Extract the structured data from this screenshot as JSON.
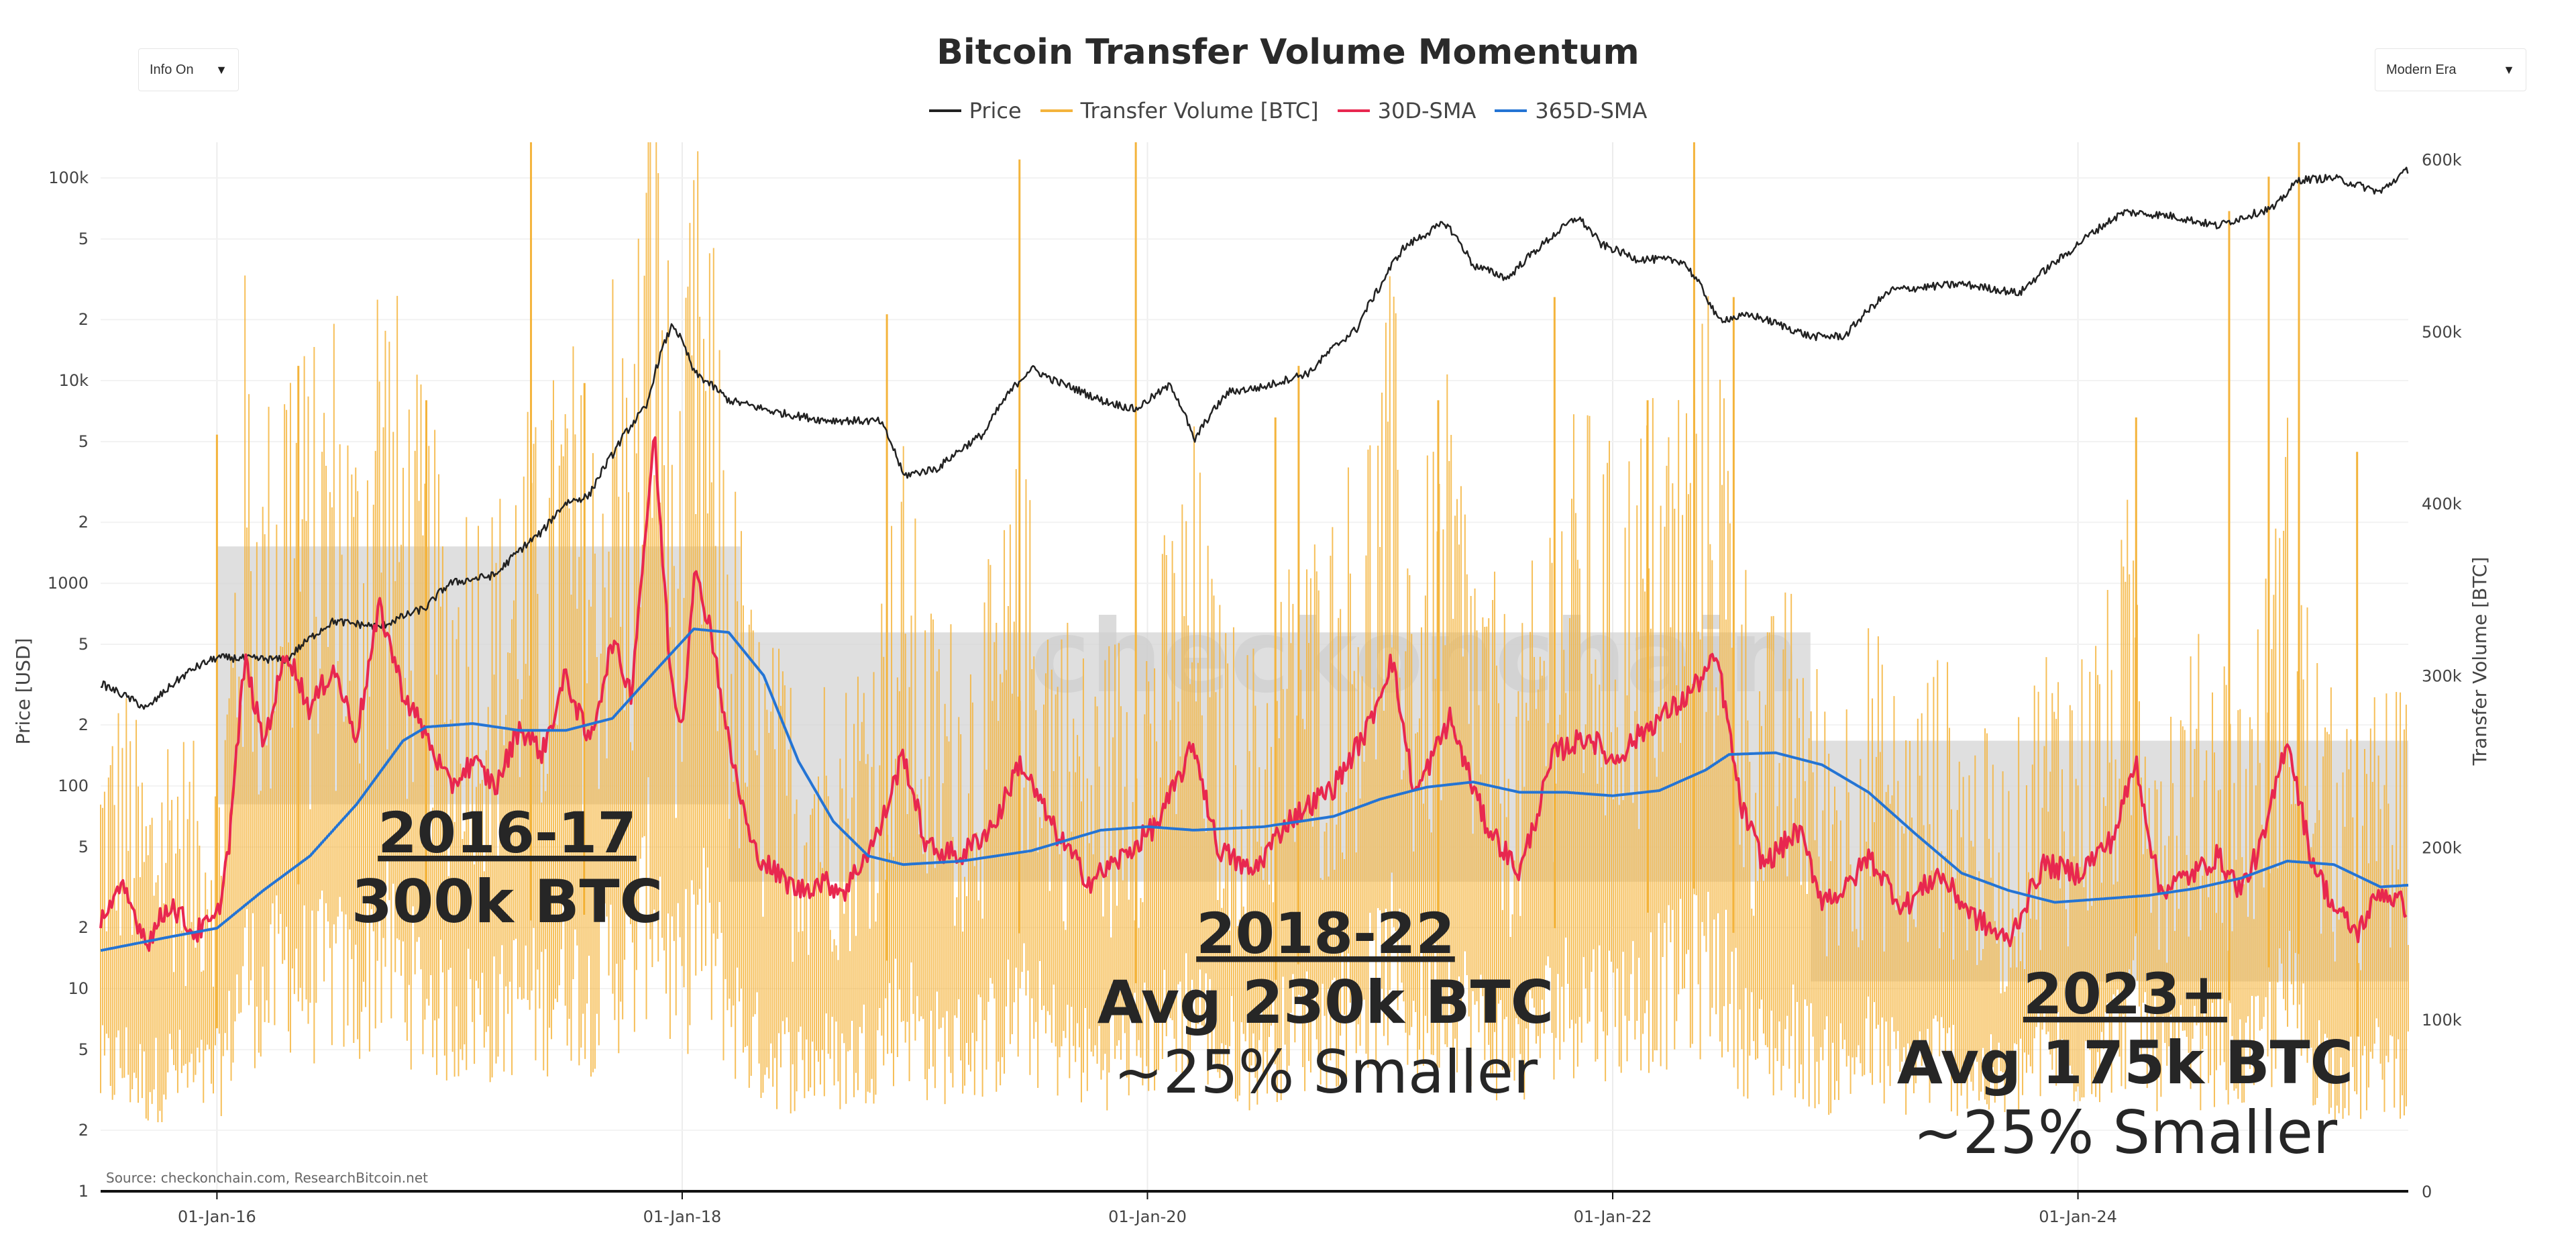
{
  "controls": {
    "info_label": "Info On",
    "era_label": "Modern Era",
    "dropdown_glyph": "▼"
  },
  "colors": {
    "price": "#222222",
    "volume": "#f4b43c",
    "sma30": "#e8274f",
    "sma365": "#2474d4",
    "watermark": "#cfcfcf"
  },
  "chart_data": {
    "type": "line",
    "title": "Bitcoin Transfer Volume Momentum",
    "legend": [
      "Price",
      "Transfer Volume [BTC]",
      "30D-SMA",
      "365D-SMA"
    ],
    "y_left_label": "Price [USD]",
    "y_right_label": "Transfer Volume [BTC]",
    "y_left_scale": "log",
    "y_left_range": [
      1,
      150000
    ],
    "y_right_range": [
      0,
      610000
    ],
    "x_range": [
      "2015-07-01",
      "2025-06-01"
    ],
    "x_ticks": [
      "01-Jan-16",
      "01-Jan-18",
      "01-Jan-20",
      "01-Jan-22",
      "01-Jan-24"
    ],
    "x_tick_dates": [
      2016.0,
      2018.0,
      2020.0,
      2022.0,
      2024.0
    ],
    "y_left_ticks": [
      {
        "v": 1,
        "t": "1"
      },
      {
        "v": 2,
        "t": "2"
      },
      {
        "v": 5,
        "t": "5"
      },
      {
        "v": 10,
        "t": "10"
      },
      {
        "v": 20,
        "t": "2"
      },
      {
        "v": 50,
        "t": "5"
      },
      {
        "v": 100,
        "t": "100"
      },
      {
        "v": 200,
        "t": "2"
      },
      {
        "v": 500,
        "t": "5"
      },
      {
        "v": 1000,
        "t": "1000"
      },
      {
        "v": 2000,
        "t": "2"
      },
      {
        "v": 5000,
        "t": "5"
      },
      {
        "v": 10000,
        "t": "10k"
      },
      {
        "v": 20000,
        "t": "2"
      },
      {
        "v": 50000,
        "t": "5"
      },
      {
        "v": 100000,
        "t": "100k"
      }
    ],
    "y_right_ticks": [
      {
        "v": 0,
        "t": "0"
      },
      {
        "v": 100000,
        "t": "100k"
      },
      {
        "v": 200000,
        "t": "200k"
      },
      {
        "v": 300000,
        "t": "300k"
      },
      {
        "v": 400000,
        "t": "400k"
      },
      {
        "v": 500000,
        "t": "500k"
      },
      {
        "v": 600000,
        "t": "600k"
      }
    ],
    "series": [
      {
        "name": "Price",
        "axis": "left",
        "points": [
          [
            2015.5,
            320
          ],
          [
            2015.7,
            240
          ],
          [
            2015.9,
            380
          ],
          [
            2016.0,
            430
          ],
          [
            2016.3,
            420
          ],
          [
            2016.5,
            650
          ],
          [
            2016.7,
            610
          ],
          [
            2016.9,
            760
          ],
          [
            2017.0,
            1000
          ],
          [
            2017.2,
            1100
          ],
          [
            2017.4,
            1800
          ],
          [
            2017.5,
            2500
          ],
          [
            2017.6,
            2700
          ],
          [
            2017.7,
            4300
          ],
          [
            2017.85,
            7500
          ],
          [
            2017.96,
            19000
          ],
          [
            2018.05,
            11000
          ],
          [
            2018.2,
            8000
          ],
          [
            2018.4,
            7000
          ],
          [
            2018.6,
            6400
          ],
          [
            2018.85,
            6300
          ],
          [
            2018.95,
            3400
          ],
          [
            2019.1,
            3700
          ],
          [
            2019.3,
            5500
          ],
          [
            2019.5,
            11500
          ],
          [
            2019.6,
            10000
          ],
          [
            2019.8,
            8000
          ],
          [
            2019.95,
            7200
          ],
          [
            2020.1,
            9500
          ],
          [
            2020.2,
            5000
          ],
          [
            2020.35,
            8800
          ],
          [
            2020.5,
            9300
          ],
          [
            2020.7,
            11000
          ],
          [
            2020.9,
            18000
          ],
          [
            2021.0,
            29000
          ],
          [
            2021.1,
            45000
          ],
          [
            2021.28,
            60000
          ],
          [
            2021.4,
            37000
          ],
          [
            2021.55,
            32000
          ],
          [
            2021.7,
            47000
          ],
          [
            2021.85,
            64000
          ],
          [
            2021.95,
            47000
          ],
          [
            2022.1,
            40000
          ],
          [
            2022.3,
            39000
          ],
          [
            2022.45,
            20000
          ],
          [
            2022.6,
            21000
          ],
          [
            2022.85,
            16500
          ],
          [
            2023.0,
            16600
          ],
          [
            2023.2,
            28000
          ],
          [
            2023.5,
            30000
          ],
          [
            2023.75,
            27000
          ],
          [
            2023.95,
            42000
          ],
          [
            2024.2,
            68000
          ],
          [
            2024.4,
            65000
          ],
          [
            2024.6,
            58000
          ],
          [
            2024.85,
            72000
          ],
          [
            2024.95,
            98000
          ],
          [
            2025.1,
            100000
          ],
          [
            2025.3,
            85000
          ],
          [
            2025.42,
            110000
          ]
        ]
      },
      {
        "name": "30D-SMA",
        "axis": "right",
        "points": [
          [
            2015.5,
            160000
          ],
          [
            2015.6,
            175000
          ],
          [
            2015.7,
            145000
          ],
          [
            2015.8,
            168000
          ],
          [
            2015.9,
            150000
          ],
          [
            2016.0,
            158000
          ],
          [
            2016.05,
            200000
          ],
          [
            2016.12,
            310000
          ],
          [
            2016.2,
            260000
          ],
          [
            2016.3,
            315000
          ],
          [
            2016.4,
            280000
          ],
          [
            2016.5,
            305000
          ],
          [
            2016.6,
            265000
          ],
          [
            2016.7,
            340000
          ],
          [
            2016.8,
            290000
          ],
          [
            2016.9,
            265000
          ],
          [
            2017.0,
            235000
          ],
          [
            2017.1,
            250000
          ],
          [
            2017.2,
            235000
          ],
          [
            2017.3,
            270000
          ],
          [
            2017.4,
            255000
          ],
          [
            2017.5,
            300000
          ],
          [
            2017.6,
            260000
          ],
          [
            2017.7,
            320000
          ],
          [
            2017.78,
            290000
          ],
          [
            2017.88,
            440000
          ],
          [
            2017.95,
            300000
          ],
          [
            2018.0,
            270000
          ],
          [
            2018.05,
            360000
          ],
          [
            2018.12,
            330000
          ],
          [
            2018.2,
            260000
          ],
          [
            2018.3,
            200000
          ],
          [
            2018.4,
            185000
          ],
          [
            2018.5,
            175000
          ],
          [
            2018.6,
            180000
          ],
          [
            2018.7,
            175000
          ],
          [
            2018.85,
            210000
          ],
          [
            2018.95,
            255000
          ],
          [
            2019.05,
            200000
          ],
          [
            2019.2,
            195000
          ],
          [
            2019.35,
            215000
          ],
          [
            2019.45,
            250000
          ],
          [
            2019.6,
            210000
          ],
          [
            2019.75,
            180000
          ],
          [
            2019.9,
            195000
          ],
          [
            2020.05,
            215000
          ],
          [
            2020.2,
            260000
          ],
          [
            2020.3,
            200000
          ],
          [
            2020.45,
            185000
          ],
          [
            2020.6,
            215000
          ],
          [
            2020.8,
            235000
          ],
          [
            2020.95,
            270000
          ],
          [
            2021.05,
            310000
          ],
          [
            2021.15,
            230000
          ],
          [
            2021.3,
            275000
          ],
          [
            2021.45,
            215000
          ],
          [
            2021.6,
            185000
          ],
          [
            2021.75,
            255000
          ],
          [
            2021.9,
            265000
          ],
          [
            2022.0,
            250000
          ],
          [
            2022.15,
            270000
          ],
          [
            2022.3,
            285000
          ],
          [
            2022.45,
            310000
          ],
          [
            2022.55,
            225000
          ],
          [
            2022.65,
            190000
          ],
          [
            2022.8,
            210000
          ],
          [
            2022.9,
            170000
          ],
          [
            2023.0,
            175000
          ],
          [
            2023.1,
            195000
          ],
          [
            2023.25,
            165000
          ],
          [
            2023.4,
            185000
          ],
          [
            2023.55,
            160000
          ],
          [
            2023.7,
            145000
          ],
          [
            2023.85,
            190000
          ],
          [
            2024.0,
            185000
          ],
          [
            2024.15,
            205000
          ],
          [
            2024.25,
            250000
          ],
          [
            2024.35,
            175000
          ],
          [
            2024.5,
            185000
          ],
          [
            2024.6,
            195000
          ],
          [
            2024.7,
            175000
          ],
          [
            2024.8,
            205000
          ],
          [
            2024.9,
            265000
          ],
          [
            2025.0,
            195000
          ],
          [
            2025.1,
            165000
          ],
          [
            2025.2,
            150000
          ],
          [
            2025.3,
            175000
          ],
          [
            2025.42,
            165000
          ]
        ]
      },
      {
        "name": "365D-SMA",
        "axis": "right",
        "points": [
          [
            2015.5,
            140000
          ],
          [
            2015.8,
            148000
          ],
          [
            2016.0,
            153000
          ],
          [
            2016.2,
            175000
          ],
          [
            2016.4,
            195000
          ],
          [
            2016.6,
            225000
          ],
          [
            2016.8,
            262000
          ],
          [
            2016.9,
            270000
          ],
          [
            2017.1,
            272000
          ],
          [
            2017.3,
            268000
          ],
          [
            2017.5,
            268000
          ],
          [
            2017.7,
            275000
          ],
          [
            2017.9,
            305000
          ],
          [
            2018.05,
            327000
          ],
          [
            2018.2,
            325000
          ],
          [
            2018.35,
            300000
          ],
          [
            2018.5,
            250000
          ],
          [
            2018.65,
            215000
          ],
          [
            2018.8,
            195000
          ],
          [
            2018.95,
            190000
          ],
          [
            2019.2,
            192000
          ],
          [
            2019.5,
            198000
          ],
          [
            2019.8,
            210000
          ],
          [
            2020.0,
            212000
          ],
          [
            2020.2,
            210000
          ],
          [
            2020.5,
            212000
          ],
          [
            2020.8,
            218000
          ],
          [
            2021.0,
            228000
          ],
          [
            2021.2,
            235000
          ],
          [
            2021.4,
            238000
          ],
          [
            2021.6,
            232000
          ],
          [
            2021.8,
            232000
          ],
          [
            2022.0,
            230000
          ],
          [
            2022.2,
            233000
          ],
          [
            2022.4,
            245000
          ],
          [
            2022.5,
            254000
          ],
          [
            2022.7,
            255000
          ],
          [
            2022.9,
            248000
          ],
          [
            2023.1,
            232000
          ],
          [
            2023.3,
            208000
          ],
          [
            2023.5,
            185000
          ],
          [
            2023.7,
            175000
          ],
          [
            2023.9,
            168000
          ],
          [
            2024.1,
            170000
          ],
          [
            2024.3,
            172000
          ],
          [
            2024.5,
            176000
          ],
          [
            2024.7,
            182000
          ],
          [
            2024.9,
            192000
          ],
          [
            2025.1,
            190000
          ],
          [
            2025.3,
            177000
          ],
          [
            2025.42,
            178000
          ]
        ]
      }
    ],
    "volume_spikes": [
      [
        2016.0,
        440000
      ],
      [
        2016.35,
        480000
      ],
      [
        2016.9,
        460000
      ],
      [
        2017.35,
        610000
      ],
      [
        2017.58,
        470000
      ],
      [
        2018.88,
        510000
      ],
      [
        2019.45,
        600000
      ],
      [
        2019.95,
        610000
      ],
      [
        2020.55,
        450000
      ],
      [
        2020.65,
        480000
      ],
      [
        2021.25,
        460000
      ],
      [
        2021.75,
        520000
      ],
      [
        2022.15,
        460000
      ],
      [
        2022.35,
        610000
      ],
      [
        2022.52,
        520000
      ],
      [
        2024.25,
        450000
      ],
      [
        2024.65,
        570000
      ],
      [
        2024.82,
        590000
      ],
      [
        2024.95,
        610000
      ],
      [
        2025.2,
        430000
      ]
    ],
    "bands": [
      {
        "start": 2016.0,
        "end": 2018.25,
        "low": 225000,
        "high": 375000
      },
      {
        "start": 2018.2,
        "end": 2022.85,
        "low": 180000,
        "high": 325000
      },
      {
        "start": 2022.85,
        "end": 2025.42,
        "low": 122000,
        "high": 262000
      }
    ],
    "annotations": [
      {
        "head": "2016-17",
        "line1": "300k BTC",
        "line2": ""
      },
      {
        "head": "2018-22",
        "line1": "Avg 230k BTC",
        "line2": "~25% Smaller"
      },
      {
        "head": "2023+",
        "line1": "Avg 175k BTC",
        "line2": "~25% Smaller"
      }
    ],
    "watermark": "checkonchain",
    "source": "Source: checkonchain.com, ResearchBitcoin.net"
  }
}
